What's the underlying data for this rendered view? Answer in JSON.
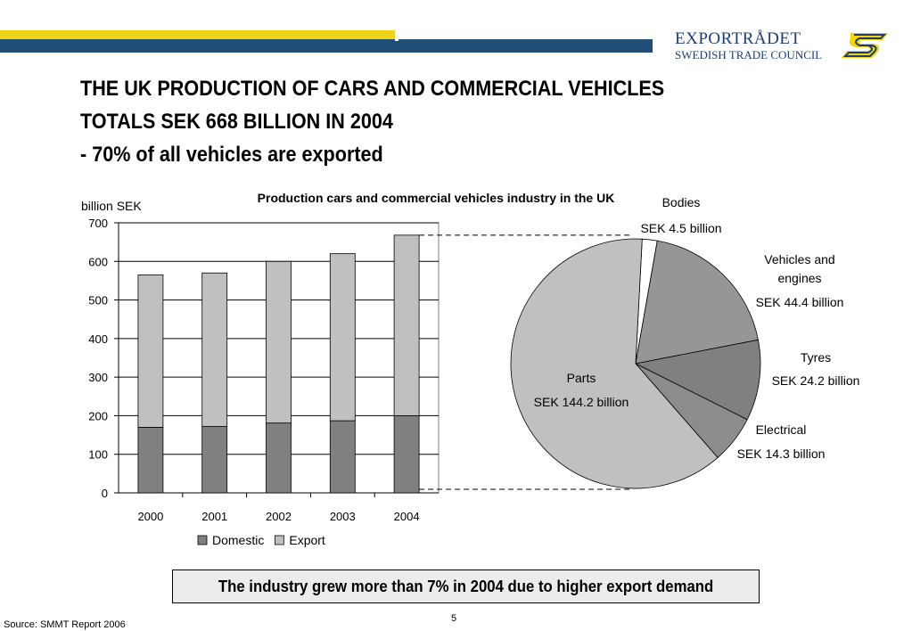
{
  "brand": {
    "name": "EXPORTRÅDET",
    "subtitle": "SWEDISH TRADE COUNCIL",
    "colors": {
      "yellow": "#f2d214",
      "blue": "#1f4e79",
      "text": "#1f3d74"
    }
  },
  "title": {
    "line1": "THE UK PRODUCTION OF CARS AND COMMERCIAL VEHICLES",
    "line2": "TOTALS SEK 668 BILLION IN 2004",
    "line3": "- 70% of all vehicles are exported"
  },
  "chart_data": [
    {
      "type": "bar",
      "stacked": true,
      "title": "Production cars and commercial vehicles industry in the UK",
      "ylabel": "billion SEK",
      "xlabel": "",
      "categories": [
        "2000",
        "2001",
        "2002",
        "2003",
        "2004"
      ],
      "series": [
        {
          "name": "Domestic",
          "values": [
            170,
            172,
            181,
            187,
            200
          ],
          "color": "#808080"
        },
        {
          "name": "Export",
          "values": [
            395,
            398,
            419,
            433,
            468
          ],
          "color": "#c0c0c0"
        }
      ],
      "ylim": [
        0,
        700
      ],
      "yticks": [
        0,
        100,
        200,
        300,
        400,
        500,
        600,
        700
      ],
      "grid": true,
      "legend": "bottom"
    },
    {
      "type": "pie",
      "unit": "SEK billion",
      "slices": [
        {
          "label": "Bodies",
          "value_label": "SEK 4.5 billion",
          "value": 4.5,
          "color": "#ffffff"
        },
        {
          "label": "Vehicles and engines",
          "value_label": "SEK 44.4 billion",
          "value": 44.4,
          "color": "#969696"
        },
        {
          "label": "Tyres",
          "value_label": "SEK 24.2 billion",
          "value": 24.2,
          "color": "#808080"
        },
        {
          "label": "Electrical",
          "value_label": "SEK 14.3 billion",
          "value": 14.3,
          "color": "#8c8c8c"
        },
        {
          "label": "Parts",
          "value_label": "SEK 144.2 billion",
          "value": 144.2,
          "color": "#c0c0c0"
        }
      ]
    }
  ],
  "callout": "The industry grew more than 7% in 2004 due to higher export demand",
  "page_number": "5",
  "source": "Source: SMMT Report 2006"
}
